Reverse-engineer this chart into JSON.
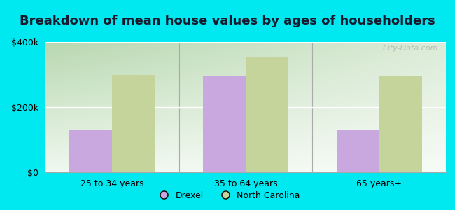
{
  "title": "Breakdown of mean house values by ages of householders",
  "categories": [
    "25 to 34 years",
    "35 to 64 years",
    "65 years+"
  ],
  "drexel_values": [
    130000,
    295000,
    130000
  ],
  "nc_values": [
    300000,
    355000,
    295000
  ],
  "drexel_color": "#c9a8e0",
  "nc_color": "#c5d49a",
  "background_outer": "#00e8f0",
  "ylim": [
    0,
    400000
  ],
  "legend_labels": [
    "Drexel",
    "North Carolina"
  ],
  "bar_width": 0.32,
  "title_fontsize": 13,
  "axis_fontsize": 9,
  "legend_fontsize": 9,
  "watermark_text": "City-Data.com",
  "grad_top": "#b8d8b0",
  "grad_bottom": "#f0f8ef"
}
